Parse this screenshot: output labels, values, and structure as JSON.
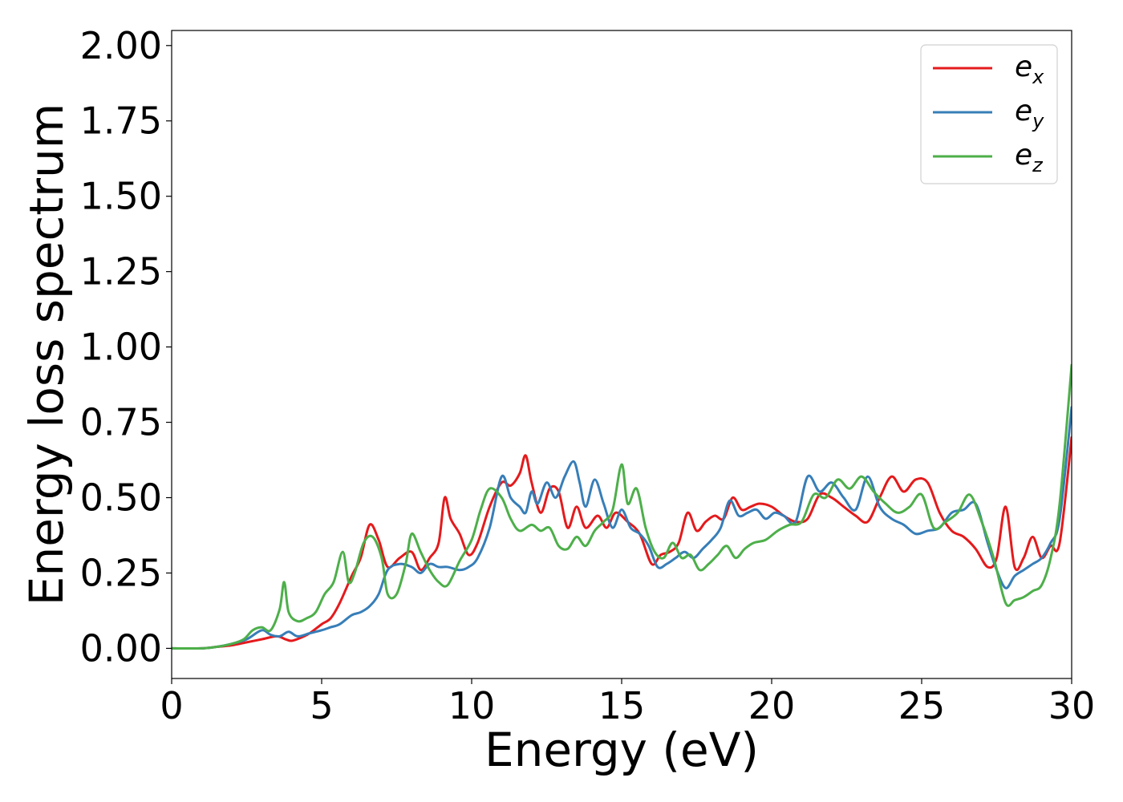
{
  "chart_data": {
    "type": "line",
    "title": "",
    "xlabel": "Energy (eV)",
    "ylabel": "Energy loss spectrum",
    "xlim": [
      0,
      30
    ],
    "ylim": [
      -0.1,
      2.05
    ],
    "xticks": [
      0,
      5,
      10,
      15,
      20,
      25,
      30
    ],
    "xtick_labels": [
      "0",
      "5",
      "10",
      "15",
      "20",
      "25",
      "30"
    ],
    "yticks": [
      0,
      0.25,
      0.5,
      0.75,
      1.0,
      1.25,
      1.5,
      1.75,
      2.0
    ],
    "ytick_labels": [
      "0.00",
      "0.25",
      "0.50",
      "0.75",
      "1.00",
      "1.25",
      "1.50",
      "1.75",
      "2.00"
    ],
    "grid": false,
    "legend_position": "top-right",
    "series": [
      {
        "name": "e",
        "subscript": "x",
        "color": "#e41a1c",
        "x": [
          0,
          1,
          1.5,
          2,
          2.5,
          3,
          3.5,
          3.8,
          4,
          4.3,
          4.6,
          5,
          5.3,
          5.6,
          6,
          6.3,
          6.6,
          6.9,
          7.2,
          7.6,
          8,
          8.3,
          8.6,
          8.9,
          9.1,
          9.3,
          9.6,
          9.9,
          10.2,
          10.6,
          11,
          11.3,
          11.6,
          11.8,
          12,
          12.3,
          12.6,
          12.9,
          13.2,
          13.5,
          13.8,
          14.2,
          14.5,
          14.8,
          15.2,
          15.6,
          16,
          16.3,
          16.6,
          16.9,
          17.2,
          17.5,
          17.8,
          18.1,
          18.4,
          18.7,
          19,
          19.3,
          19.6,
          20,
          20.4,
          20.8,
          21.2,
          21.6,
          22,
          22.4,
          22.8,
          23.2,
          23.6,
          24,
          24.4,
          24.8,
          25.2,
          25.6,
          26,
          26.4,
          26.8,
          27.2,
          27.5,
          27.8,
          28.1,
          28.4,
          28.7,
          29,
          29.3,
          29.6,
          30
        ],
        "y": [
          0,
          0,
          0.005,
          0.01,
          0.02,
          0.03,
          0.04,
          0.03,
          0.025,
          0.035,
          0.05,
          0.08,
          0.1,
          0.15,
          0.24,
          0.3,
          0.41,
          0.36,
          0.27,
          0.3,
          0.32,
          0.26,
          0.3,
          0.35,
          0.5,
          0.43,
          0.38,
          0.31,
          0.35,
          0.47,
          0.55,
          0.54,
          0.58,
          0.64,
          0.55,
          0.45,
          0.53,
          0.52,
          0.4,
          0.47,
          0.4,
          0.44,
          0.4,
          0.45,
          0.42,
          0.38,
          0.28,
          0.31,
          0.32,
          0.35,
          0.45,
          0.39,
          0.42,
          0.44,
          0.43,
          0.5,
          0.46,
          0.47,
          0.48,
          0.47,
          0.44,
          0.42,
          0.43,
          0.51,
          0.5,
          0.47,
          0.44,
          0.42,
          0.5,
          0.57,
          0.52,
          0.56,
          0.55,
          0.45,
          0.39,
          0.37,
          0.33,
          0.27,
          0.3,
          0.47,
          0.27,
          0.3,
          0.37,
          0.3,
          0.34,
          0.35,
          0.7
        ]
      },
      {
        "name": "e",
        "subscript": "y",
        "color": "#377eb8",
        "x": [
          0,
          1,
          1.5,
          2,
          2.5,
          3,
          3.3,
          3.6,
          3.9,
          4.2,
          4.6,
          5,
          5.3,
          5.6,
          6,
          6.3,
          6.6,
          6.9,
          7.2,
          7.6,
          8,
          8.3,
          8.6,
          8.9,
          9.2,
          9.6,
          9.9,
          10.2,
          10.6,
          11,
          11.3,
          11.6,
          11.8,
          12,
          12.2,
          12.5,
          12.8,
          13.1,
          13.4,
          13.6,
          13.8,
          14.1,
          14.4,
          14.7,
          15,
          15.3,
          15.6,
          15.9,
          16.2,
          16.5,
          16.8,
          17.1,
          17.4,
          17.7,
          18,
          18.3,
          18.6,
          18.9,
          19.2,
          19.5,
          19.8,
          20.1,
          20.4,
          20.8,
          21.2,
          21.6,
          22,
          22.4,
          22.8,
          23.2,
          23.6,
          24,
          24.4,
          24.8,
          25.2,
          25.6,
          26,
          26.4,
          26.8,
          27.2,
          27.5,
          27.8,
          28.1,
          28.4,
          28.7,
          29,
          29.3,
          29.6,
          30
        ],
        "y": [
          0,
          0,
          0.005,
          0.015,
          0.03,
          0.06,
          0.045,
          0.04,
          0.055,
          0.04,
          0.05,
          0.06,
          0.07,
          0.08,
          0.11,
          0.12,
          0.14,
          0.18,
          0.26,
          0.28,
          0.27,
          0.25,
          0.28,
          0.27,
          0.27,
          0.26,
          0.27,
          0.3,
          0.4,
          0.57,
          0.5,
          0.47,
          0.45,
          0.52,
          0.48,
          0.55,
          0.5,
          0.57,
          0.62,
          0.55,
          0.47,
          0.56,
          0.48,
          0.4,
          0.46,
          0.4,
          0.38,
          0.34,
          0.27,
          0.28,
          0.3,
          0.32,
          0.3,
          0.33,
          0.36,
          0.4,
          0.49,
          0.44,
          0.45,
          0.46,
          0.43,
          0.45,
          0.44,
          0.42,
          0.57,
          0.52,
          0.55,
          0.5,
          0.46,
          0.57,
          0.47,
          0.43,
          0.41,
          0.38,
          0.39,
          0.4,
          0.45,
          0.46,
          0.48,
          0.35,
          0.26,
          0.2,
          0.24,
          0.26,
          0.28,
          0.3,
          0.35,
          0.43,
          0.8
        ]
      },
      {
        "name": "e",
        "subscript": "z",
        "color": "#4daf4a",
        "x": [
          0,
          1,
          1.5,
          2,
          2.4,
          2.7,
          3,
          3.3,
          3.6,
          3.75,
          3.9,
          4.2,
          4.5,
          4.8,
          5.1,
          5.4,
          5.7,
          5.9,
          6.1,
          6.4,
          6.7,
          7,
          7.2,
          7.5,
          7.8,
          8,
          8.3,
          8.6,
          8.9,
          9.2,
          9.6,
          10,
          10.3,
          10.6,
          11,
          11.3,
          11.6,
          12,
          12.3,
          12.6,
          12.9,
          13.2,
          13.5,
          13.8,
          14.1,
          14.4,
          14.7,
          15,
          15.2,
          15.5,
          15.8,
          16.1,
          16.4,
          16.7,
          17,
          17.3,
          17.6,
          17.9,
          18.2,
          18.5,
          18.8,
          19.1,
          19.4,
          19.8,
          20.2,
          20.6,
          21,
          21.4,
          21.8,
          22.2,
          22.6,
          23,
          23.4,
          23.8,
          24.2,
          24.6,
          25,
          25.4,
          25.8,
          26.2,
          26.6,
          27,
          27.4,
          27.8,
          28.1,
          28.4,
          28.7,
          29,
          29.3,
          29.6,
          30
        ],
        "y": [
          0,
          0,
          0.005,
          0.015,
          0.03,
          0.06,
          0.07,
          0.06,
          0.13,
          0.22,
          0.12,
          0.09,
          0.1,
          0.12,
          0.18,
          0.22,
          0.32,
          0.22,
          0.25,
          0.35,
          0.37,
          0.3,
          0.18,
          0.18,
          0.28,
          0.38,
          0.32,
          0.26,
          0.22,
          0.21,
          0.29,
          0.36,
          0.46,
          0.53,
          0.5,
          0.43,
          0.39,
          0.41,
          0.39,
          0.4,
          0.34,
          0.33,
          0.37,
          0.34,
          0.39,
          0.42,
          0.46,
          0.61,
          0.48,
          0.53,
          0.4,
          0.32,
          0.3,
          0.35,
          0.3,
          0.31,
          0.26,
          0.28,
          0.31,
          0.34,
          0.3,
          0.33,
          0.35,
          0.36,
          0.39,
          0.41,
          0.42,
          0.51,
          0.5,
          0.56,
          0.53,
          0.57,
          0.52,
          0.48,
          0.45,
          0.47,
          0.51,
          0.4,
          0.42,
          0.45,
          0.51,
          0.42,
          0.3,
          0.15,
          0.16,
          0.17,
          0.19,
          0.21,
          0.3,
          0.48,
          0.94
        ]
      }
    ]
  }
}
